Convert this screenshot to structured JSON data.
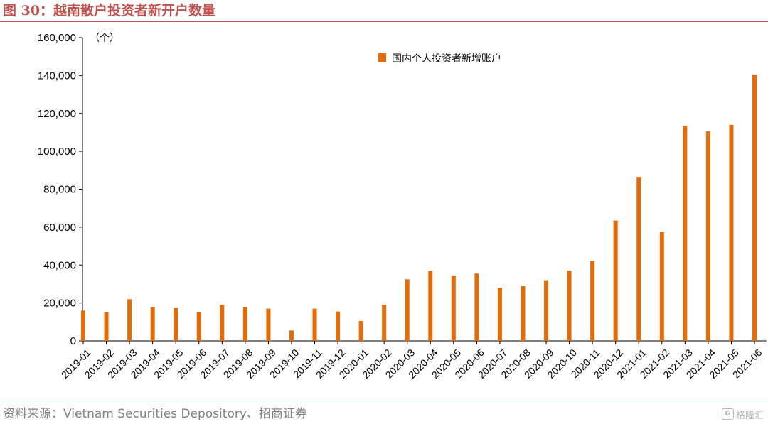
{
  "figure": {
    "title": "图 30：越南散户投资者新开户数量",
    "source": "资料来源：Vietnam Securities Depository、招商证券",
    "watermark": "格隆汇",
    "watermark_icon": "G",
    "accent_color": "#c0504d"
  },
  "chart_data": {
    "type": "bar",
    "unit_label": "（个）",
    "categories": [
      "2019-01",
      "2019-02",
      "2019-03",
      "2019-04",
      "2019-05",
      "2019-06",
      "2019-07",
      "2019-08",
      "2019-09",
      "2019-10",
      "2019-11",
      "2019-12",
      "2020-01",
      "2020-02",
      "2020-03",
      "2020-04",
      "2020-05",
      "2020-06",
      "2020-07",
      "2020-08",
      "2020-09",
      "2020-10",
      "2020-11",
      "2020-12",
      "2021-01",
      "2021-02",
      "2021-03",
      "2021-04",
      "2021-05",
      "2021-06"
    ],
    "series": [
      {
        "name": "国内个人投资者新增账户",
        "color": "#e36c09",
        "values": [
          16000,
          15000,
          22000,
          18000,
          17500,
          15000,
          19000,
          18000,
          17000,
          5500,
          17000,
          15500,
          10500,
          19000,
          32500,
          37000,
          34500,
          35500,
          28000,
          29000,
          32000,
          37000,
          42000,
          63500,
          86500,
          57500,
          113500,
          110500,
          114000,
          140500
        ]
      }
    ],
    "ylim": [
      0,
      160000
    ],
    "y_ticks": [
      "0",
      "20,000",
      "40,000",
      "60,000",
      "80,000",
      "100,000",
      "120,000",
      "140,000",
      "160,000"
    ],
    "grid": false,
    "legend_position": "top-center"
  }
}
